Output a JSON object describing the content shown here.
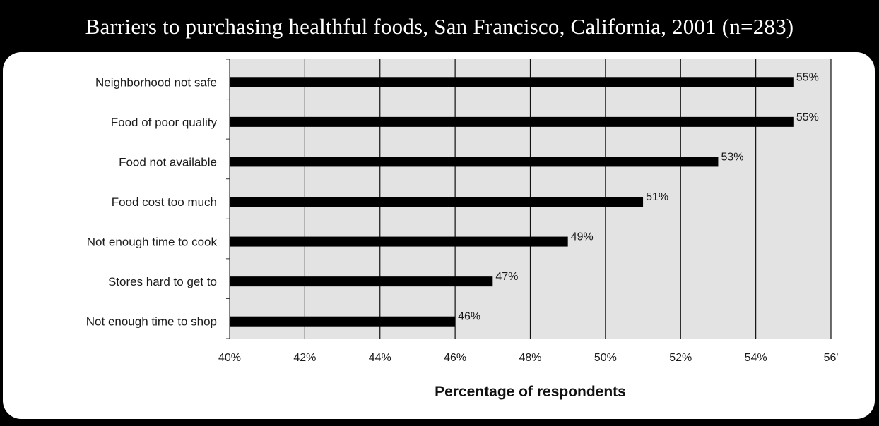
{
  "title": "Barriers to purchasing healthful foods, San Francisco, California, 2001 (n=283)",
  "colors": {
    "frame": "#000000",
    "panel": "#ffffff",
    "plot_background": "#e3e3e3",
    "bar": "#000000",
    "gridline": "#111111"
  },
  "chart_data": {
    "type": "bar",
    "orientation": "horizontal",
    "categories": [
      "Neighborhood not safe",
      "Food of poor quality",
      "Food not available",
      "Food cost too much",
      "Not enough time to cook",
      "Stores hard to get to",
      "Not enough time to shop"
    ],
    "values": [
      55,
      55,
      53,
      51,
      49,
      47,
      46
    ],
    "data_labels": [
      "55%",
      "55%",
      "53%",
      "51%",
      "49%",
      "47%",
      "46%"
    ],
    "xlabel": "Percentage of respondents",
    "ylabel": "",
    "xlim": [
      40,
      56
    ],
    "xticks": [
      40,
      42,
      44,
      46,
      48,
      50,
      52,
      54,
      56
    ],
    "xtick_labels": [
      "40%",
      "42%",
      "44%",
      "46%",
      "48%",
      "50%",
      "52%",
      "54%",
      "56'"
    ],
    "grid": "vertical",
    "legend": "none"
  }
}
